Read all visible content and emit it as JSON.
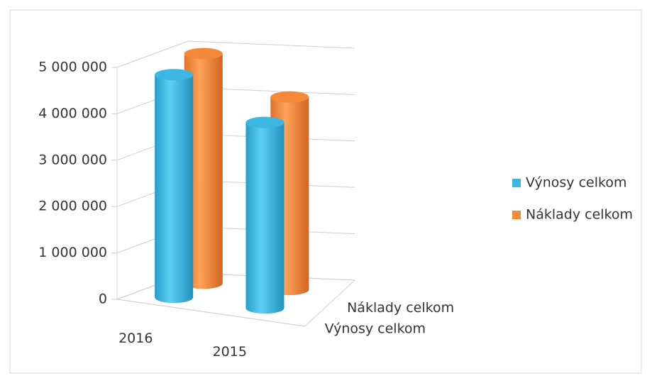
{
  "chart_data": {
    "type": "bar",
    "categories": [
      "2016",
      "2015"
    ],
    "series": [
      {
        "name": "Výnosy celkom",
        "color": "#3cb6e2",
        "values": [
          4800000,
          4000000
        ]
      },
      {
        "name": "Náklady celkom",
        "color": "#f5893a",
        "values": [
          4950000,
          4150000
        ]
      }
    ],
    "ylim": [
      0,
      5000000
    ],
    "yticks": [
      0,
      {
        "value": 1000000,
        "label": "1 000 000"
      },
      {
        "value": 2000000,
        "label": "2 000 000"
      },
      {
        "value": 3000000,
        "label": "3 000 000"
      },
      {
        "value": 4000000,
        "label": "4 000 000"
      },
      {
        "value": 5000000,
        "label": "5 000 000"
      }
    ],
    "grid": true,
    "legend": "right"
  }
}
